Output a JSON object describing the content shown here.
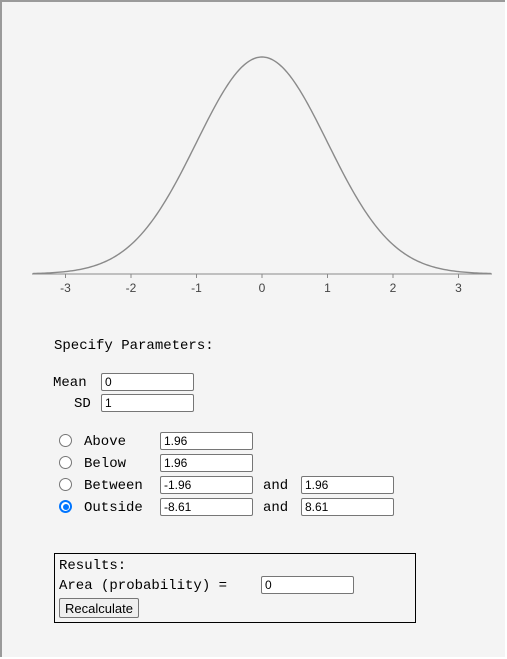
{
  "plot": {
    "x_ticks": [
      "-3",
      "-2",
      "-1",
      "0",
      "1",
      "2",
      "3"
    ],
    "curve_color": "#8a8a8a",
    "axis_color": "#8a8a8a"
  },
  "params": {
    "title": "Specify Parameters:",
    "mean_label": "Mean",
    "mean_value": "0",
    "sd_label": "SD",
    "sd_value": "1"
  },
  "options": {
    "above_label": "Above",
    "above_value": "1.96",
    "below_label": "Below",
    "below_value": "1.96",
    "between_label": "Between",
    "between_low": "-1.96",
    "between_high": "1.96",
    "outside_label": "Outside",
    "outside_low": "-8.61",
    "outside_high": "8.61",
    "and_label": "and",
    "selected": "outside"
  },
  "results": {
    "title": "Results:",
    "area_label": "Area (probability) =",
    "area_value": "0",
    "recalc_label": "Recalculate"
  }
}
